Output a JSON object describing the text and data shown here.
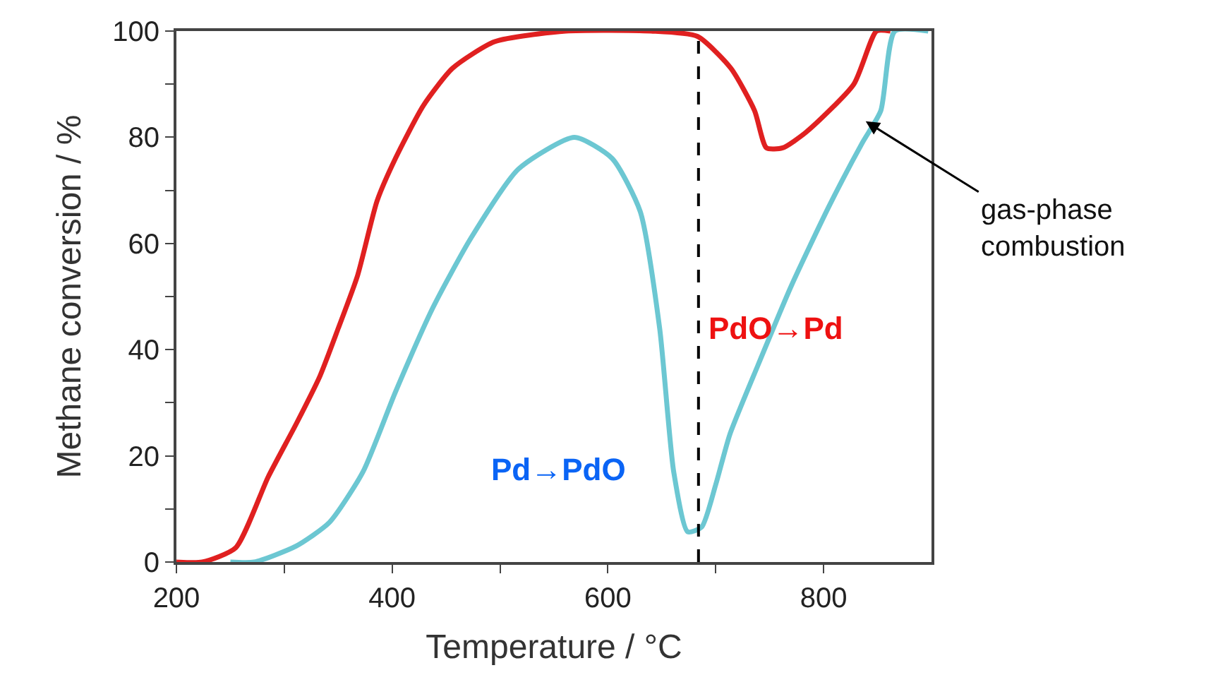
{
  "chart_data": {
    "type": "line",
    "xlabel": "Temperature / °C",
    "ylabel": "Methane conversion / %",
    "xlim": [
      200,
      900
    ],
    "xticks": [
      200,
      {
        "value": 300,
        "label": null
      },
      400,
      {
        "value": 500,
        "label": null
      },
      600,
      {
        "value": 700,
        "label": null
      },
      800
    ],
    "ylim": [
      0,
      100
    ],
    "yticks": [
      0,
      {
        "value": 10,
        "label": null
      },
      20,
      {
        "value": 30,
        "label": null
      },
      40,
      {
        "value": 50,
        "label": null
      },
      60,
      {
        "value": 70,
        "label": null
      },
      80,
      {
        "value": 90,
        "label": null
      },
      100
    ],
    "legend": false,
    "marker": "none",
    "line_style": "solid",
    "series": [
      {
        "color": "#e02020",
        "x": [
          200,
          224,
          255,
          285,
          311,
          333,
          350,
          368,
          386,
          403,
          429,
          456,
          495,
          561,
          640,
          683,
          714,
          736,
          747,
          762,
          784,
          828,
          849,
          862
        ],
        "values": [
          0,
          0,
          2.7,
          16,
          26,
          35,
          44,
          54,
          68,
          76,
          86,
          93,
          98,
          100,
          100,
          99,
          93,
          85,
          78,
          78,
          81,
          90,
          100,
          100
        ]
      },
      {
        "color": "#6cc7d2",
        "x": [
          250,
          272,
          311,
          342,
          373,
          403,
          438,
          473,
          517,
          569,
          604,
          630,
          648,
          661,
          674,
          687,
          700,
          713,
          739,
          770,
          805,
          836,
          853,
          866,
          897
        ],
        "values": [
          0,
          0,
          3,
          7.5,
          17,
          32,
          48,
          61,
          74,
          80,
          76,
          66,
          44,
          17,
          5.7,
          6.6,
          14.6,
          24,
          37,
          52,
          67,
          79,
          85,
          100,
          100
        ]
      }
    ],
    "ref_lines": [
      {
        "axis": "x",
        "value": 684,
        "color": "#000000",
        "line_style": "dashed"
      }
    ],
    "annotations": [
      "Pd→PdO",
      "PdO→Pd",
      {
        "text": "gas-phase combustion",
        "x": 839,
        "y": 83
      }
    ]
  }
}
